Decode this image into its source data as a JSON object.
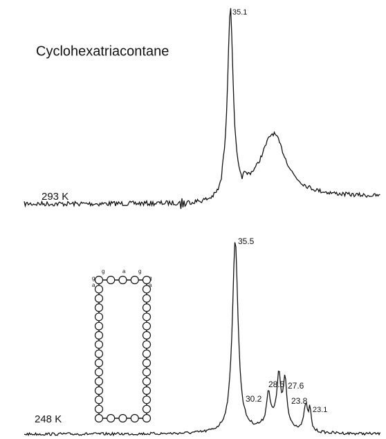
{
  "title": "Cyclohexatriacontane",
  "spectra": [
    {
      "temperature": "293 K",
      "peaks": [
        "35.1"
      ]
    },
    {
      "temperature": "248 K",
      "peaks": [
        "35.5",
        "30.2",
        "28.5",
        "27.6",
        "23.8",
        "23.1"
      ]
    }
  ],
  "molecule": {
    "labels": [
      "g",
      "a",
      "g",
      "g",
      "a",
      "g",
      "a"
    ]
  }
}
